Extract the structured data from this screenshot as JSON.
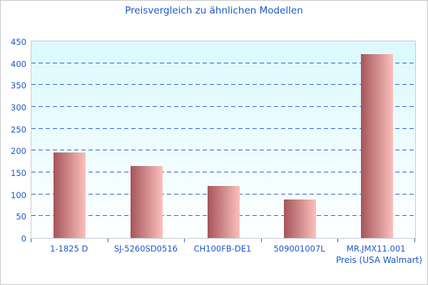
{
  "chart_data": {
    "type": "bar",
    "title": "Preisvergleich zu ähnlichen Modellen",
    "categories": [
      "1-1825 D",
      "SJ-5260SD0516",
      "CH100FB-DE1",
      "509001007L",
      "MR.JMX11.001"
    ],
    "values": [
      196,
      165,
      119,
      88,
      420
    ],
    "xlabel": "Preis (USA Walmart)",
    "ylabel": "",
    "ylim": [
      0,
      450
    ],
    "ytick_step": 50,
    "yticks": [
      0,
      50,
      100,
      150,
      200,
      250,
      300,
      350,
      400,
      450
    ],
    "grid": "horizontal-dashed",
    "legend": "none",
    "plot_background": "cyan-to-white vertical gradient"
  },
  "colors": {
    "title_text": "#1c57c8",
    "axis_text": "#1c57c8",
    "gridline": "#3366cc",
    "tick": "#3366cc",
    "plot_border": "#c7cdd6",
    "frame_border": "#c9c9c9",
    "plot_bg_top": "#daf9fe",
    "plot_bg_bottom": "#ffffff",
    "bar_left": "#a5555a",
    "bar_right": "#fcc0bc"
  }
}
